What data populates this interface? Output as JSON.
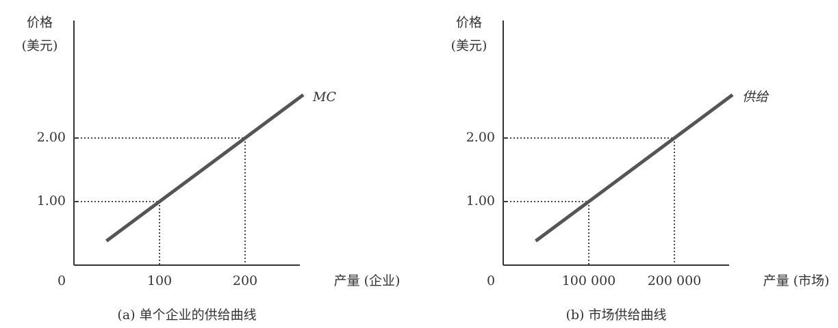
{
  "chart_data": [
    {
      "type": "line",
      "ylabel_lines": [
        "价格",
        "(美元)"
      ],
      "xlabel": "产量 (企业)",
      "caption": "(a) 单个企业的供给曲线",
      "xlim": [
        0,
        280
      ],
      "ylim": [
        0,
        3.85
      ],
      "xticks": [
        0,
        100,
        200
      ],
      "yticks": [
        {
          "value": 1,
          "label": "1.00"
        },
        {
          "value": 2,
          "label": "2.00"
        }
      ],
      "guides": true,
      "series": [
        {
          "name": "MC",
          "color": "#555555",
          "x": [
            38,
            100,
            200,
            268
          ],
          "values": [
            0.38,
            1,
            2,
            2.68
          ]
        }
      ]
    },
    {
      "type": "line",
      "ylabel_lines": [
        "价格",
        "(美元)"
      ],
      "xlabel": "产量 (市场)",
      "caption": "(b) 市场供给曲线",
      "xlim": [
        0,
        280000
      ],
      "ylim": [
        0,
        3.85
      ],
      "xticks": [
        0,
        {
          "value": 100000,
          "label": "100 000"
        },
        {
          "value": 200000,
          "label": "200 000"
        }
      ],
      "yticks": [
        {
          "value": 1,
          "label": "1.00"
        },
        {
          "value": 2,
          "label": "2.00"
        }
      ],
      "guides": true,
      "series": [
        {
          "name": "供给",
          "color": "#555555",
          "x": [
            38000,
            100000,
            200000,
            268000
          ],
          "values": [
            0.38,
            1,
            2,
            2.68
          ]
        }
      ]
    }
  ]
}
